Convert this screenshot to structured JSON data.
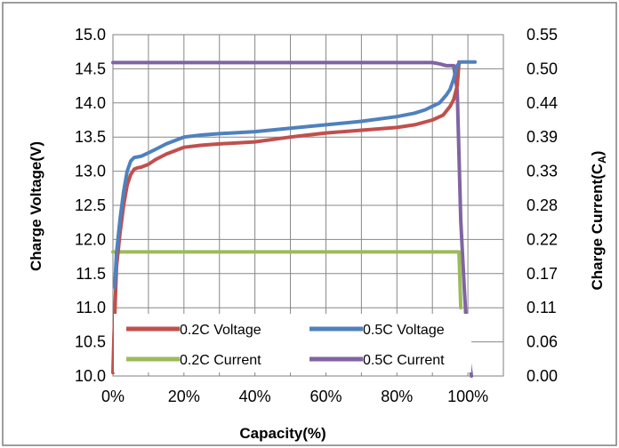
{
  "chart_data": {
    "type": "line",
    "xlabel": "Capacity(%)",
    "ylabel": "Charge Voltage(V)",
    "y2label_main": "Charge Current(C",
    "y2label_sub": "A",
    "y2label_end": ")",
    "xlim": [
      0,
      110
    ],
    "xticks": [
      "0%",
      "20%",
      "40%",
      "60%",
      "80%",
      "100%"
    ],
    "xtick_values": [
      0,
      20,
      40,
      60,
      80,
      100
    ],
    "ylim": [
      10.0,
      15.0
    ],
    "yticks": [
      "10.0",
      "10.5",
      "11.0",
      "11.5",
      "12.0",
      "12.5",
      "13.0",
      "13.5",
      "14.0",
      "14.5",
      "15.0"
    ],
    "y2lim": [
      0.0,
      0.55
    ],
    "y2ticks": [
      "0.00",
      "0.06",
      "0.11",
      "0.17",
      "0.22",
      "0.28",
      "0.33",
      "0.39",
      "0.44",
      "0.50",
      "0.55"
    ],
    "grid": true,
    "legend_position": "bottom-left",
    "series": [
      {
        "name": "0.2C Voltage",
        "axis": "left",
        "color": "#C0504D",
        "x": [
          0,
          0.3,
          1,
          2,
          3,
          4,
          5,
          6,
          7,
          8,
          10,
          12,
          15,
          20,
          25,
          30,
          40,
          50,
          55,
          60,
          70,
          80,
          85,
          90,
          93,
          95,
          96,
          97,
          97.5
        ],
        "y": [
          10.05,
          10.6,
          11.6,
          12.1,
          12.5,
          12.8,
          12.95,
          13.03,
          13.05,
          13.06,
          13.1,
          13.17,
          13.25,
          13.35,
          13.38,
          13.4,
          13.43,
          13.5,
          13.53,
          13.56,
          13.6,
          13.64,
          13.68,
          13.75,
          13.82,
          13.95,
          14.05,
          14.25,
          14.6
        ]
      },
      {
        "name": "0.5C Voltage",
        "axis": "left",
        "color": "#4F81BD",
        "x": [
          0.5,
          1,
          2,
          3,
          4,
          5,
          6,
          7,
          8,
          10,
          12,
          15,
          20,
          25,
          30,
          40,
          50,
          60,
          70,
          80,
          85,
          88,
          90,
          92,
          94,
          95,
          96,
          97,
          98,
          100,
          102
        ],
        "y": [
          11.3,
          11.8,
          12.3,
          12.7,
          13.0,
          13.15,
          13.2,
          13.21,
          13.22,
          13.27,
          13.32,
          13.4,
          13.5,
          13.53,
          13.55,
          13.58,
          13.63,
          13.68,
          13.73,
          13.8,
          13.85,
          13.9,
          13.95,
          14.0,
          14.12,
          14.2,
          14.35,
          14.55,
          14.6,
          14.6,
          14.6
        ]
      },
      {
        "name": "0.2C Current",
        "axis": "right",
        "color": "#9BBB59",
        "x": [
          0,
          20,
          40,
          60,
          80,
          96,
          97,
          97.5,
          98
        ],
        "y": [
          0.2,
          0.2,
          0.2,
          0.2,
          0.2,
          0.2,
          0.2,
          0.2,
          0.11
        ]
      },
      {
        "name": "0.5C Current",
        "axis": "right",
        "color": "#8064A2",
        "x": [
          0,
          10,
          20,
          30,
          40,
          50,
          60,
          70,
          80,
          90,
          92,
          94,
          96,
          97,
          98,
          99,
          100,
          101
        ],
        "y": [
          0.505,
          0.505,
          0.505,
          0.505,
          0.505,
          0.505,
          0.505,
          0.505,
          0.505,
          0.505,
          0.503,
          0.5,
          0.5,
          0.46,
          0.25,
          0.14,
          0.04,
          0.0
        ]
      }
    ]
  }
}
